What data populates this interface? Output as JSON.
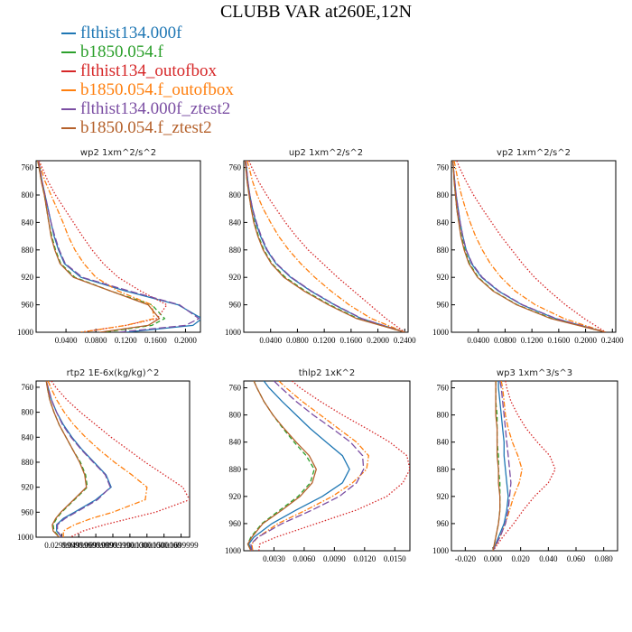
{
  "title": "CLUBB VAR at260E,12N",
  "legend": [
    {
      "label": "flthist134.000f",
      "color": "#1f77b4"
    },
    {
      "label": "b1850.054.f",
      "color": "#2ca02c"
    },
    {
      "label": "flthist134_outofbox",
      "color": "#d62728"
    },
    {
      "label": "b1850.054.f_outofbox",
      "color": "#ff7f0e"
    },
    {
      "label": "flthist134.000f_ztest2",
      "color": "#7b4ea3"
    },
    {
      "label": "b1850.054.f_ztest2",
      "color": "#b5612b"
    }
  ],
  "chart_data": [
    {
      "type": "line",
      "title": "wp2   1xm^2/s^2",
      "xlim": [
        0.0,
        0.22
      ],
      "ylim": [
        1000,
        750
      ],
      "xticks": [
        0.04,
        0.08,
        0.12,
        0.16,
        0.2
      ],
      "xtick_labels": [
        "0.0400",
        "0.0800",
        "0.1200",
        "0.1600",
        "0.2000"
      ],
      "yticks": [
        760,
        800,
        840,
        880,
        920,
        960,
        1000
      ],
      "y": [
        750,
        760,
        780,
        800,
        820,
        840,
        860,
        880,
        900,
        920,
        940,
        960,
        980,
        990,
        1000
      ],
      "series": [
        {
          "style": "solid",
          "values": [
            0.003,
            0.005,
            0.008,
            0.012,
            0.016,
            0.02,
            0.024,
            0.03,
            0.038,
            0.06,
            0.12,
            0.19,
            0.222,
            0.21,
            0.12
          ]
        },
        {
          "style": "dash",
          "values": [
            0.002,
            0.004,
            0.007,
            0.011,
            0.014,
            0.017,
            0.021,
            0.026,
            0.033,
            0.052,
            0.1,
            0.155,
            0.172,
            0.155,
            0.09
          ]
        },
        {
          "style": "dot",
          "values": [
            0.004,
            0.008,
            0.016,
            0.026,
            0.038,
            0.05,
            0.062,
            0.075,
            0.09,
            0.11,
            0.14,
            0.175,
            0.162,
            0.12,
            0.06
          ]
        },
        {
          "style": "dashdot",
          "values": [
            0.003,
            0.006,
            0.012,
            0.02,
            0.028,
            0.036,
            0.043,
            0.052,
            0.064,
            0.08,
            0.11,
            0.155,
            0.158,
            0.12,
            0.06
          ]
        },
        {
          "style": "longdash",
          "values": [
            0.003,
            0.005,
            0.008,
            0.012,
            0.016,
            0.02,
            0.025,
            0.031,
            0.039,
            0.062,
            0.125,
            0.192,
            0.218,
            0.2,
            0.11
          ]
        },
        {
          "style": "solid",
          "values": [
            0.002,
            0.004,
            0.007,
            0.011,
            0.014,
            0.017,
            0.02,
            0.025,
            0.032,
            0.05,
            0.1,
            0.15,
            0.165,
            0.15,
            0.085
          ]
        }
      ]
    },
    {
      "type": "line",
      "title": "up2   1xm^2/s^2",
      "xlim": [
        0.0,
        0.245
      ],
      "ylim": [
        1000,
        750
      ],
      "xticks": [
        0.04,
        0.08,
        0.12,
        0.16,
        0.2,
        0.24
      ],
      "xtick_labels": [
        "0.0400",
        "0.0800",
        "0.1200",
        "0.1600",
        "0.2000",
        "0.2400"
      ],
      "yticks": [
        760,
        800,
        840,
        880,
        920,
        960,
        1000
      ],
      "y": [
        750,
        760,
        780,
        800,
        820,
        840,
        860,
        880,
        900,
        920,
        940,
        960,
        980,
        1000
      ],
      "series": [
        {
          "style": "solid",
          "values": [
            0.003,
            0.004,
            0.006,
            0.009,
            0.013,
            0.018,
            0.025,
            0.034,
            0.048,
            0.07,
            0.1,
            0.135,
            0.175,
            0.24
          ]
        },
        {
          "style": "dash",
          "values": [
            0.002,
            0.003,
            0.005,
            0.008,
            0.011,
            0.016,
            0.022,
            0.03,
            0.042,
            0.062,
            0.092,
            0.128,
            0.17,
            0.24
          ]
        },
        {
          "style": "dot",
          "values": [
            0.008,
            0.012,
            0.022,
            0.034,
            0.048,
            0.062,
            0.078,
            0.096,
            0.118,
            0.14,
            0.164,
            0.188,
            0.212,
            0.24
          ]
        },
        {
          "style": "dashdot",
          "values": [
            0.005,
            0.008,
            0.013,
            0.02,
            0.029,
            0.04,
            0.052,
            0.067,
            0.085,
            0.106,
            0.13,
            0.157,
            0.19,
            0.24
          ]
        },
        {
          "style": "longdash",
          "values": [
            0.003,
            0.004,
            0.006,
            0.009,
            0.013,
            0.019,
            0.026,
            0.035,
            0.049,
            0.071,
            0.101,
            0.136,
            0.176,
            0.24
          ]
        },
        {
          "style": "solid",
          "values": [
            0.002,
            0.003,
            0.005,
            0.008,
            0.011,
            0.015,
            0.021,
            0.029,
            0.041,
            0.06,
            0.09,
            0.126,
            0.168,
            0.24
          ]
        }
      ]
    },
    {
      "type": "line",
      "title": "vp2   1xm^2/s^2",
      "xlim": [
        0.0,
        0.245
      ],
      "ylim": [
        1000,
        750
      ],
      "xticks": [
        0.04,
        0.08,
        0.12,
        0.16,
        0.2,
        0.24
      ],
      "xtick_labels": [
        "0.0400",
        "0.0800",
        "0.1200",
        "0.1600",
        "0.2000",
        "0.2400"
      ],
      "yticks": [
        760,
        800,
        840,
        880,
        920,
        960,
        1000
      ],
      "y": [
        750,
        760,
        780,
        800,
        820,
        840,
        860,
        880,
        900,
        920,
        940,
        960,
        980,
        1000
      ],
      "series": [
        {
          "style": "solid",
          "values": [
            0.002,
            0.003,
            0.005,
            0.007,
            0.01,
            0.013,
            0.017,
            0.022,
            0.03,
            0.045,
            0.07,
            0.105,
            0.155,
            0.23
          ]
        },
        {
          "style": "dash",
          "values": [
            0.002,
            0.003,
            0.004,
            0.006,
            0.008,
            0.011,
            0.015,
            0.02,
            0.027,
            0.04,
            0.063,
            0.098,
            0.15,
            0.23
          ]
        },
        {
          "style": "dot",
          "values": [
            0.008,
            0.012,
            0.022,
            0.033,
            0.046,
            0.06,
            0.074,
            0.09,
            0.106,
            0.124,
            0.146,
            0.17,
            0.198,
            0.23
          ]
        },
        {
          "style": "dashdot",
          "values": [
            0.004,
            0.006,
            0.01,
            0.015,
            0.021,
            0.028,
            0.036,
            0.046,
            0.058,
            0.074,
            0.095,
            0.125,
            0.168,
            0.23
          ]
        },
        {
          "style": "longdash",
          "values": [
            0.002,
            0.003,
            0.005,
            0.007,
            0.01,
            0.013,
            0.017,
            0.022,
            0.031,
            0.046,
            0.071,
            0.106,
            0.156,
            0.23
          ]
        },
        {
          "style": "solid",
          "values": [
            0.002,
            0.003,
            0.004,
            0.006,
            0.008,
            0.011,
            0.014,
            0.019,
            0.026,
            0.039,
            0.062,
            0.097,
            0.148,
            0.23
          ]
        }
      ]
    },
    {
      "type": "line",
      "title": "rtp2   1E-6x(kg/kg)^2",
      "xlim": [
        0.0,
        0.18
      ],
      "ylim": [
        1000,
        750
      ],
      "xticks": [
        0.03,
        0.05,
        0.07,
        0.09,
        0.11,
        0.13,
        0.15,
        0.17
      ],
      "xtick_labels": [
        "0.0299999",
        "0.0499999",
        "0.0699999",
        "0.0899999",
        "0.1100000",
        "0.1300000",
        "0.1500000",
        "0.1699999"
      ],
      "yticks": [
        760,
        800,
        840,
        880,
        920,
        960,
        1000
      ],
      "y": [
        750,
        760,
        780,
        800,
        820,
        840,
        860,
        880,
        900,
        920,
        940,
        960,
        970,
        980,
        990,
        1000
      ],
      "series": [
        {
          "style": "solid",
          "values": [
            0.012,
            0.014,
            0.018,
            0.024,
            0.032,
            0.042,
            0.054,
            0.068,
            0.082,
            0.088,
            0.07,
            0.045,
            0.032,
            0.024,
            0.024,
            0.03
          ]
        },
        {
          "style": "dash",
          "values": [
            0.012,
            0.013,
            0.016,
            0.021,
            0.027,
            0.035,
            0.043,
            0.052,
            0.058,
            0.06,
            0.045,
            0.03,
            0.024,
            0.02,
            0.021,
            0.028
          ]
        },
        {
          "style": "dot",
          "values": [
            0.018,
            0.023,
            0.036,
            0.052,
            0.07,
            0.088,
            0.108,
            0.128,
            0.15,
            0.172,
            0.18,
            0.14,
            0.11,
            0.08,
            0.055,
            0.04
          ]
        },
        {
          "style": "dashdot",
          "values": [
            0.014,
            0.017,
            0.024,
            0.033,
            0.044,
            0.058,
            0.074,
            0.092,
            0.112,
            0.13,
            0.128,
            0.09,
            0.065,
            0.045,
            0.032,
            0.032
          ]
        },
        {
          "style": "longdash",
          "values": [
            0.012,
            0.014,
            0.018,
            0.024,
            0.031,
            0.041,
            0.053,
            0.067,
            0.081,
            0.087,
            0.072,
            0.047,
            0.034,
            0.025,
            0.025,
            0.03
          ]
        },
        {
          "style": "solid",
          "values": [
            0.012,
            0.013,
            0.016,
            0.021,
            0.027,
            0.035,
            0.043,
            0.051,
            0.057,
            0.059,
            0.044,
            0.029,
            0.023,
            0.019,
            0.02,
            0.027
          ]
        }
      ]
    },
    {
      "type": "line",
      "title": "thlp2   1xK^2",
      "xlim": [
        0.0,
        0.0165
      ],
      "ylim": [
        1000,
        750
      ],
      "xticks": [
        0.003,
        0.006,
        0.009,
        0.012,
        0.015
      ],
      "xtick_labels": [
        "0.0030",
        "0.0060",
        "0.0090",
        "0.0120",
        "0.0150"
      ],
      "yticks": [
        760,
        800,
        840,
        880,
        920,
        960,
        1000
      ],
      "y": [
        750,
        760,
        780,
        800,
        820,
        840,
        860,
        880,
        900,
        920,
        940,
        960,
        980,
        990,
        1000
      ],
      "series": [
        {
          "style": "solid",
          "values": [
            0.002,
            0.0025,
            0.0038,
            0.0052,
            0.0066,
            0.0082,
            0.0098,
            0.0105,
            0.0098,
            0.0078,
            0.0052,
            0.0028,
            0.001,
            0.0005,
            0.0008
          ]
        },
        {
          "style": "dash",
          "values": [
            0.001,
            0.0013,
            0.002,
            0.0029,
            0.0039,
            0.005,
            0.0062,
            0.007,
            0.0066,
            0.0054,
            0.0036,
            0.0018,
            0.0007,
            0.0004,
            0.0007
          ]
        },
        {
          "style": "dot",
          "values": [
            0.0048,
            0.0056,
            0.0076,
            0.0098,
            0.0122,
            0.0145,
            0.0162,
            0.0165,
            0.0158,
            0.0142,
            0.0112,
            0.0072,
            0.0032,
            0.0016,
            0.0015
          ]
        },
        {
          "style": "dashdot",
          "values": [
            0.0035,
            0.0042,
            0.0058,
            0.0076,
            0.0094,
            0.0112,
            0.0124,
            0.0122,
            0.0108,
            0.0088,
            0.0062,
            0.0034,
            0.0014,
            0.0008,
            0.0009
          ]
        },
        {
          "style": "longdash",
          "values": [
            0.003,
            0.0037,
            0.0052,
            0.0069,
            0.0088,
            0.0106,
            0.0118,
            0.0119,
            0.0112,
            0.0095,
            0.0068,
            0.0038,
            0.0014,
            0.0007,
            0.0008
          ]
        },
        {
          "style": "solid",
          "values": [
            0.001,
            0.0013,
            0.002,
            0.0029,
            0.004,
            0.0052,
            0.0065,
            0.0072,
            0.0068,
            0.0056,
            0.0038,
            0.0019,
            0.0008,
            0.0004,
            0.0007
          ]
        }
      ]
    },
    {
      "type": "line",
      "title": "wp3   1xm^3/s^3",
      "xlim": [
        -0.03,
        0.09
      ],
      "ylim": [
        1000,
        750
      ],
      "xticks": [
        -0.02,
        0.0,
        0.02,
        0.04,
        0.06,
        0.08
      ],
      "xtick_labels": [
        "-0.020",
        "0.000",
        "0.020",
        "0.040",
        "0.060",
        "0.080"
      ],
      "yticks": [
        760,
        800,
        840,
        880,
        920,
        960,
        1000
      ],
      "y": [
        750,
        760,
        780,
        800,
        820,
        840,
        860,
        880,
        900,
        920,
        940,
        960,
        980,
        1000
      ],
      "series": [
        {
          "style": "solid",
          "values": [
            0.004,
            0.004,
            0.005,
            0.006,
            0.007,
            0.008,
            0.008,
            0.009,
            0.01,
            0.011,
            0.01,
            0.008,
            0.004,
            0.0
          ]
        },
        {
          "style": "dash",
          "values": [
            0.002,
            0.002,
            0.002,
            0.003,
            0.003,
            0.003,
            0.004,
            0.004,
            0.005,
            0.005,
            0.005,
            0.004,
            0.002,
            0.0
          ]
        },
        {
          "style": "dot",
          "values": [
            0.009,
            0.01,
            0.013,
            0.018,
            0.024,
            0.032,
            0.041,
            0.045,
            0.04,
            0.03,
            0.022,
            0.015,
            0.007,
            0.0
          ]
        },
        {
          "style": "dashdot",
          "values": [
            0.006,
            0.007,
            0.008,
            0.009,
            0.011,
            0.014,
            0.018,
            0.021,
            0.019,
            0.015,
            0.012,
            0.009,
            0.005,
            0.0
          ]
        },
        {
          "style": "longdash",
          "values": [
            0.005,
            0.006,
            0.007,
            0.008,
            0.009,
            0.01,
            0.011,
            0.012,
            0.013,
            0.012,
            0.011,
            0.009,
            0.005,
            0.0
          ]
        },
        {
          "style": "solid",
          "values": [
            0.002,
            0.002,
            0.002,
            0.002,
            0.003,
            0.003,
            0.003,
            0.004,
            0.004,
            0.005,
            0.005,
            0.004,
            0.002,
            0.0
          ]
        }
      ]
    }
  ]
}
